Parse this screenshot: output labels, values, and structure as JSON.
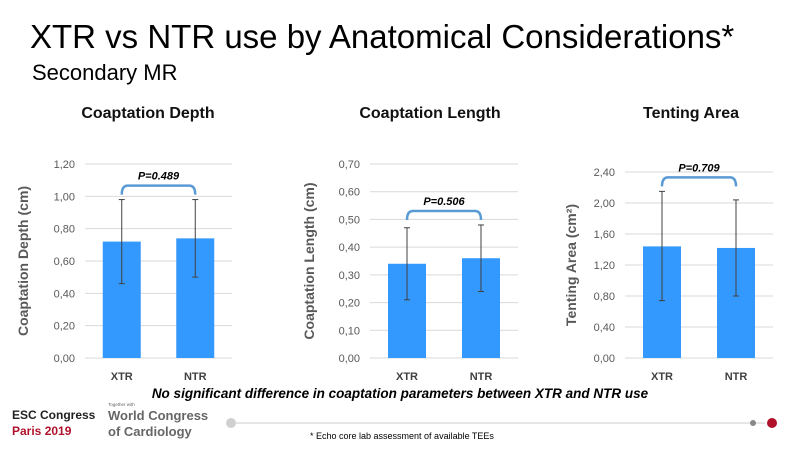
{
  "title": "XTR vs NTR use by Anatomical Considerations*",
  "subtitle": "Secondary MR",
  "conclusion": "No significant difference in coaptation parameters between XTR and NTR use",
  "footnote": "* Echo core lab assessment of available TEEs",
  "logo": {
    "line1": "ESC Congress",
    "line2": "Paris 2019",
    "together": "Together with",
    "wc1": "World Congress",
    "wc2": "of Cardiology"
  },
  "colors": {
    "bar": "#3399ff",
    "bracket": "#5b9bd5",
    "accent": "#b0122b"
  },
  "chart_data": [
    {
      "type": "bar",
      "title": "Coaptation Depth",
      "ylabel": "Coaptation Depth (cm)",
      "categories": [
        "XTR",
        "NTR"
      ],
      "values": [
        0.72,
        0.74
      ],
      "error_low": [
        0.46,
        0.5
      ],
      "error_high": [
        0.98,
        0.98
      ],
      "ylim": [
        0,
        1.2
      ],
      "yticks": [
        "0,00",
        "0,20",
        "0,40",
        "0,60",
        "0,80",
        "1,00",
        "1,20"
      ],
      "annotation": "P=0.489",
      "grid": true
    },
    {
      "type": "bar",
      "title": "Coaptation Length",
      "ylabel": "Coaptation Length (cm)",
      "categories": [
        "XTR",
        "NTR"
      ],
      "values": [
        0.34,
        0.36
      ],
      "error_low": [
        0.21,
        0.24
      ],
      "error_high": [
        0.47,
        0.48
      ],
      "ylim": [
        0,
        0.7
      ],
      "yticks": [
        "0,00",
        "0,10",
        "0,20",
        "0,30",
        "0,40",
        "0,50",
        "0,60",
        "0,70"
      ],
      "annotation": "P=0.506",
      "grid": true
    },
    {
      "type": "bar",
      "title": "Tenting Area",
      "ylabel": "Tenting Area (cm²)",
      "categories": [
        "XTR",
        "NTR"
      ],
      "values": [
        1.44,
        1.42
      ],
      "error_low": [
        0.74,
        0.8
      ],
      "error_high": [
        2.15,
        2.04
      ],
      "ylim": [
        0,
        2.4
      ],
      "yticks": [
        "0,00",
        "0,40",
        "0,80",
        "1,20",
        "1,60",
        "2,00",
        "2,40"
      ],
      "annotation": "P=0.709",
      "grid": true
    }
  ]
}
